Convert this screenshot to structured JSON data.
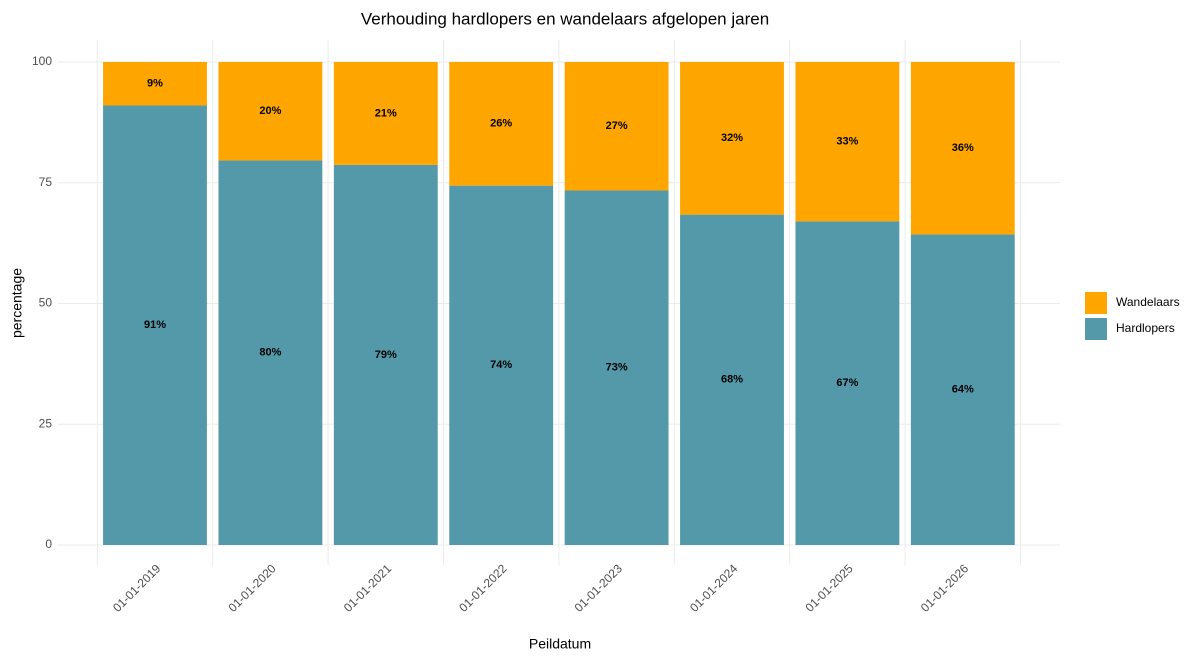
{
  "chart_data": {
    "type": "stacked_bar",
    "title": "Verhouding hardlopers en wandelaars afgelopen jaren",
    "x_label": "Peildatum",
    "y_label": "percentage",
    "categories": [
      "01-01-2019",
      "01-01-2020",
      "01-01-2021",
      "01-01-2022",
      "01-01-2023",
      "01-01-2024",
      "01-01-2025",
      "01-01-2026"
    ],
    "series": [
      {
        "name": "Hardlopers",
        "color": "#5499aa",
        "values": [
          91,
          79.6,
          78.7,
          74.4,
          73.4,
          68.4,
          67,
          64.3
        ],
        "value_labels": [
          "91%",
          "80%",
          "79%",
          "74%",
          "73%",
          "68%",
          "67%",
          "64%"
        ]
      },
      {
        "name": "Wandelaars",
        "color": "#ffa500",
        "values": [
          9,
          20.4,
          21.3,
          25.6,
          26.6,
          31.6,
          33,
          35.7
        ],
        "value_labels": [
          "9%",
          "20%",
          "21%",
          "26%",
          "27%",
          "32%",
          "33%",
          "36%"
        ]
      }
    ],
    "ylim": [
      0,
      100
    ],
    "yticks": [
      0,
      25,
      50,
      75,
      100
    ],
    "grid": true,
    "legend": "right"
  }
}
